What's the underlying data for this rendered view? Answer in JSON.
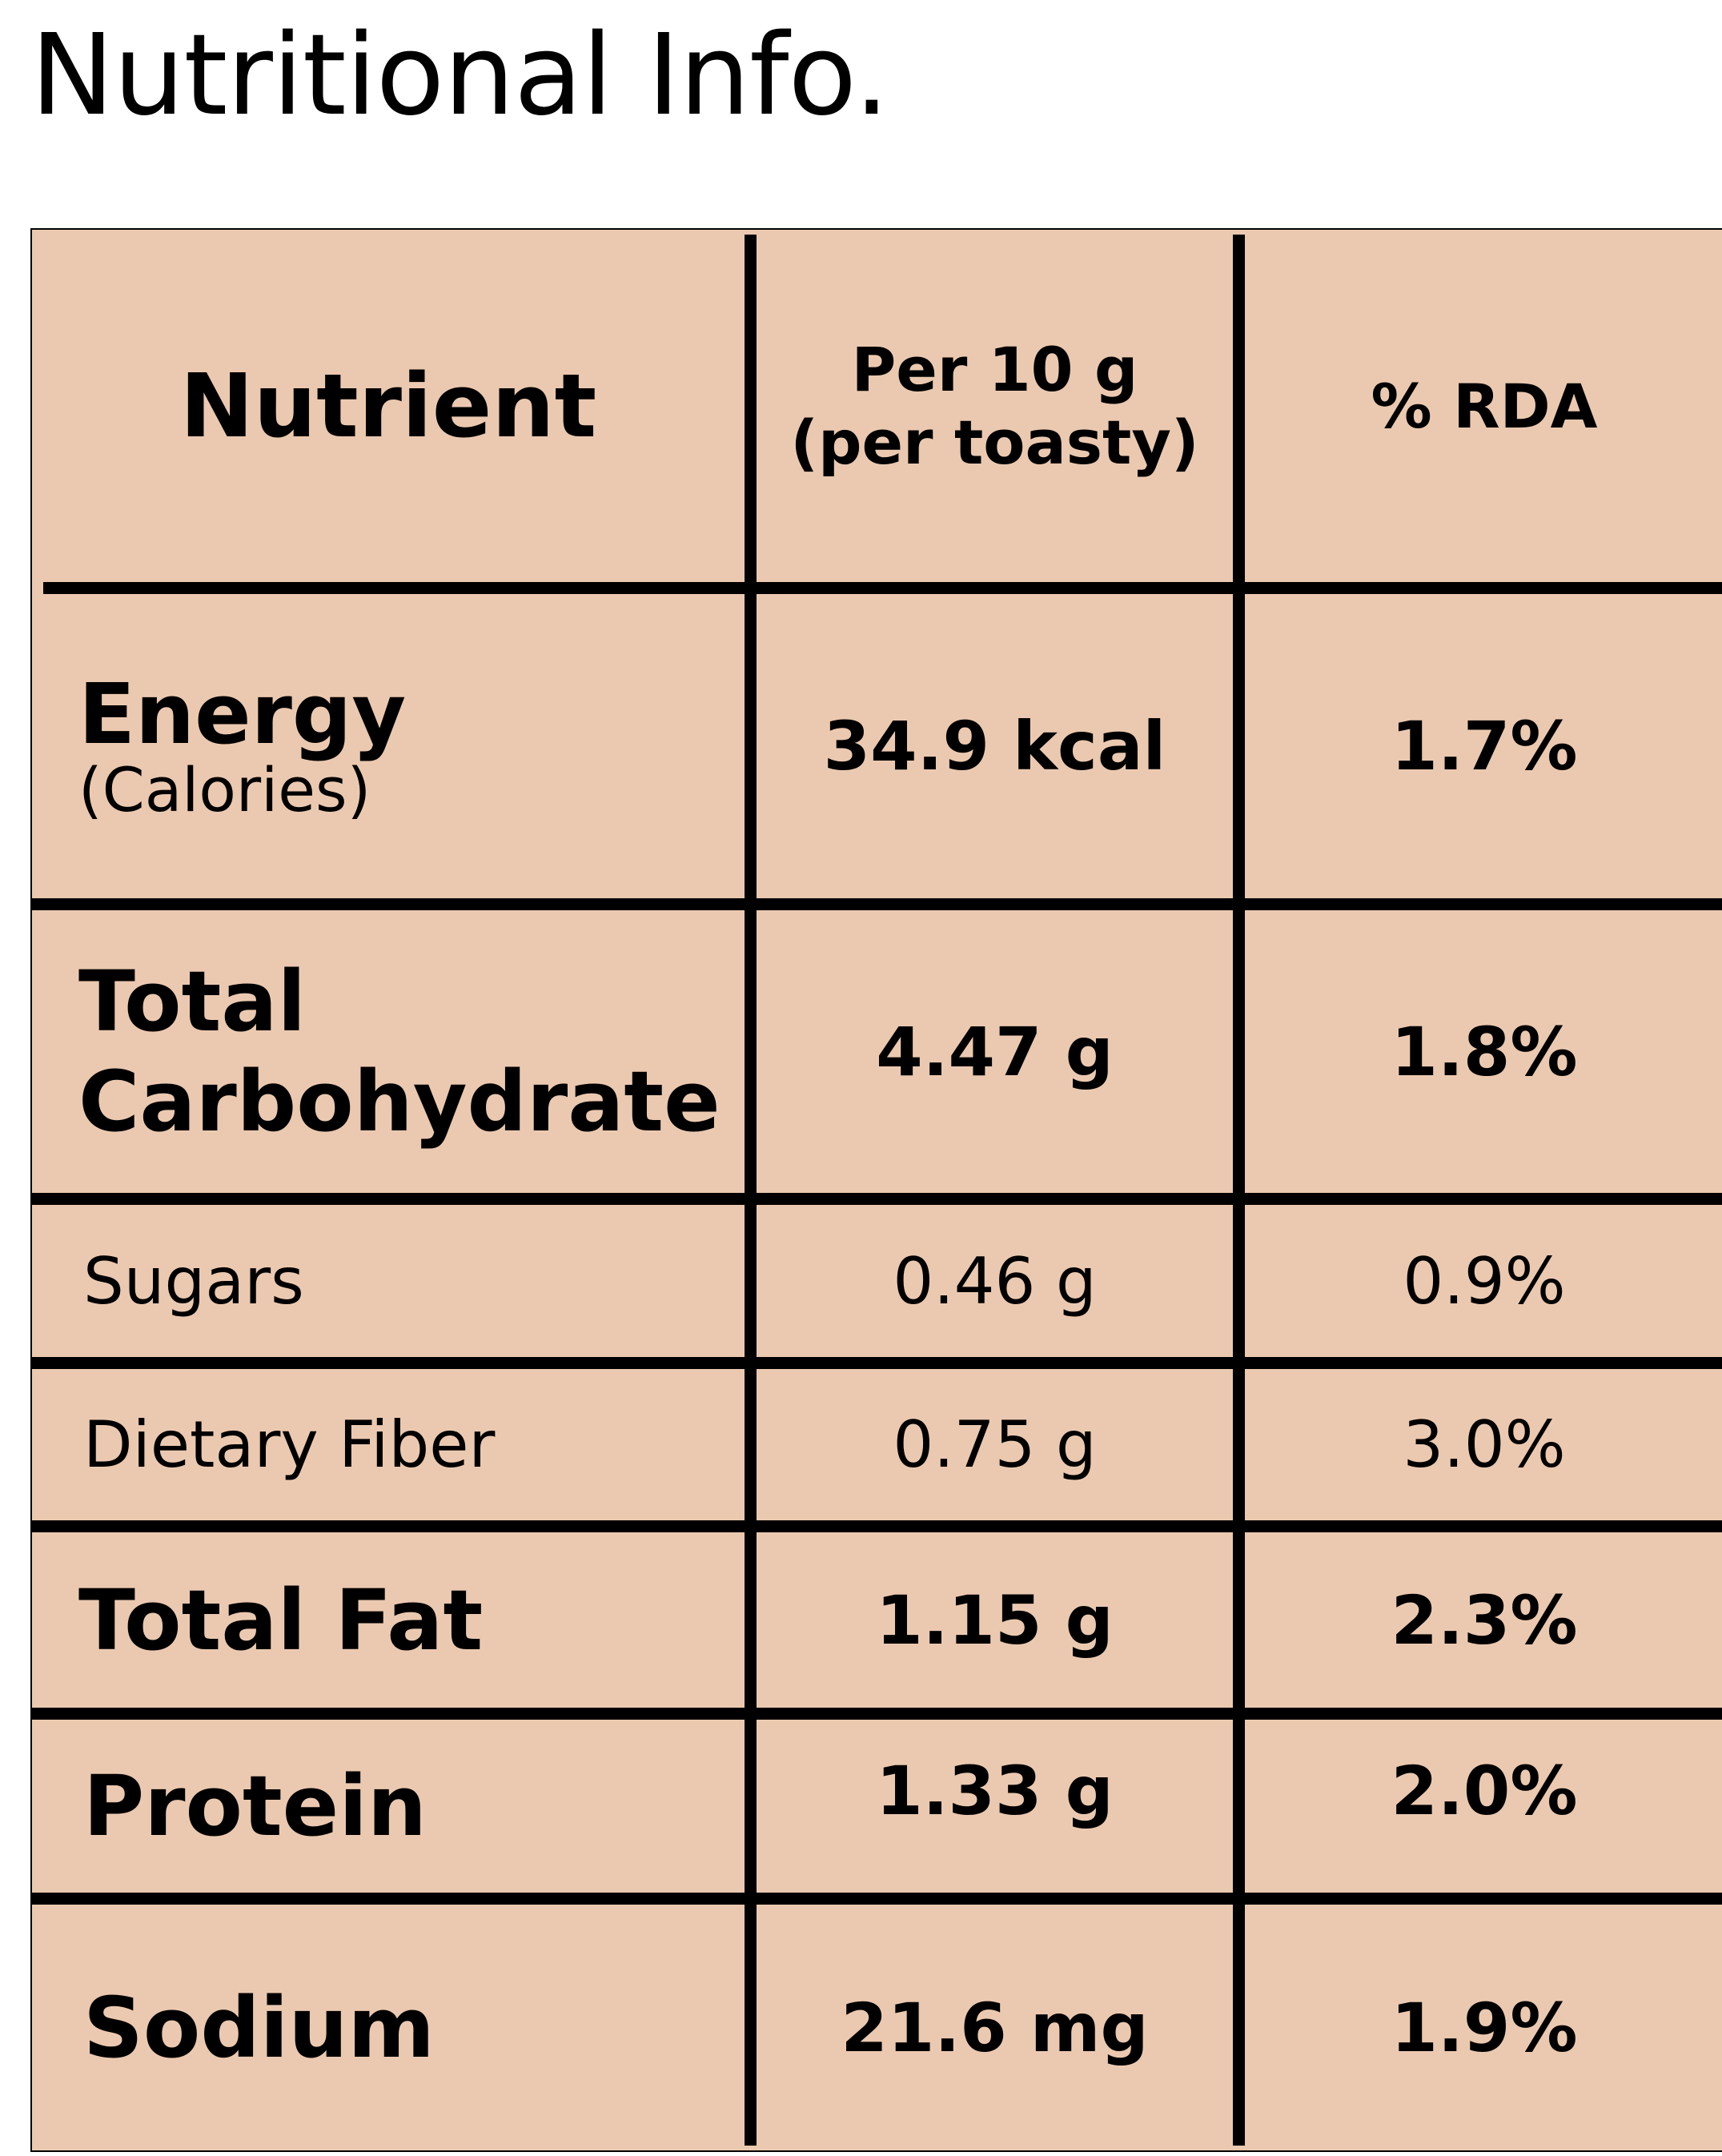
{
  "title": "Nutritional Info.",
  "header": {
    "nutrient": "Nutrient",
    "per_line1": "Per 10 g",
    "per_line2": "(per toasty)",
    "rda": "% RDA"
  },
  "rows": [
    {
      "name": "Energy",
      "sub": "(Calories)",
      "per": "34.9 kcal",
      "rda": "1.7%"
    },
    {
      "name_line1": "Total",
      "name_line2": "Carbohydrate",
      "per": "4.47 g",
      "rda": "1.8%"
    },
    {
      "name": "Sugars",
      "per": "0.46 g",
      "rda": "0.9%"
    },
    {
      "name": "Dietary Fiber",
      "per": "0.75 g",
      "rda": "3.0%"
    },
    {
      "name": "Total Fat",
      "per": "1.15 g",
      "rda": "2.3%"
    },
    {
      "name": "Protein",
      "per": "1.33 g",
      "rda": "2.0%"
    },
    {
      "name": "Sodium",
      "per": "21.6 mg",
      "rda": "1.9%"
    }
  ],
  "colors": {
    "table_background": "#ebc9b0",
    "rule": "#000000"
  }
}
